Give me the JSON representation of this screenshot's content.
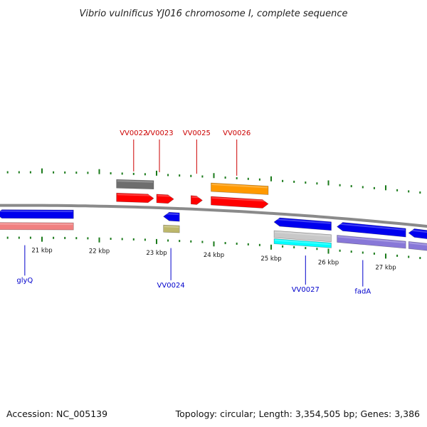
{
  "title": "Vibrio vulnificus YJ016 chromosome I, complete sequence",
  "footer": {
    "accession": "Accession: NC_005139",
    "summary": "Topology: circular; Length: 3,354,505 bp; Genes: 3,386"
  },
  "colors": {
    "backbone": "#8a8a8a",
    "tick": "#1a7a1a",
    "forward_cds": "#ff0000",
    "reverse_cds": "#0000ee",
    "top_label": "#cc0000",
    "bottom_label": "#0000cc",
    "gray_feature": "#6e6e6e",
    "orange_feature": "#ff9900",
    "pink_feature": "#f08080",
    "olive_feature": "#bdb76b",
    "cyan_feature": "#00ffff",
    "lightgray_feature": "#c8c8c8",
    "purple_feature": "#8878d8"
  },
  "scale": {
    "ticks": [
      {
        "text": "21 kbp",
        "kb": 21
      },
      {
        "text": "22 kbp",
        "kb": 22
      },
      {
        "text": "23 kbp",
        "kb": 23
      },
      {
        "text": "24 kbp",
        "kb": 24
      },
      {
        "text": "25 kbp",
        "kb": 25
      },
      {
        "text": "26 kbp",
        "kb": 26
      },
      {
        "text": "27 kbp",
        "kb": 27
      }
    ]
  },
  "labels_top": [
    {
      "text": "VV0022",
      "kb": 22.6
    },
    {
      "text": "VV0023",
      "kb": 23.05
    },
    {
      "text": "VV0025",
      "kb": 23.7
    },
    {
      "text": "VV0026",
      "kb": 24.4
    }
  ],
  "labels_bottom": [
    {
      "text": "glyQ",
      "kb": 20.7
    },
    {
      "text": "VV0024",
      "kb": 23.25
    },
    {
      "text": "VV0027",
      "kb": 25.6
    },
    {
      "text": "fadA",
      "kb": 26.6
    }
  ],
  "features": [
    {
      "name": "gray-feature-vv0022",
      "track": "top-outer",
      "start": 22.3,
      "end": 22.95,
      "strand": "none",
      "color": "gray_feature"
    },
    {
      "name": "orange-feature-vv0026",
      "track": "top-outer",
      "start": 23.95,
      "end": 24.95,
      "strand": "none",
      "color": "orange_feature"
    },
    {
      "name": "cds-vv0022",
      "track": "top-inner",
      "start": 22.3,
      "end": 22.95,
      "strand": "forward",
      "color": "forward_cds"
    },
    {
      "name": "cds-vv0023",
      "track": "top-inner",
      "start": 23.0,
      "end": 23.3,
      "strand": "forward",
      "color": "forward_cds"
    },
    {
      "name": "cds-vv0025",
      "track": "top-inner",
      "start": 23.6,
      "end": 23.8,
      "strand": "forward",
      "color": "forward_cds"
    },
    {
      "name": "cds-vv0026",
      "track": "top-inner",
      "start": 23.95,
      "end": 24.95,
      "strand": "forward",
      "color": "forward_cds"
    },
    {
      "name": "cds-left-fragment",
      "track": "bottom-inner",
      "start": 19.7,
      "end": 20.15,
      "strand": "reverse",
      "color": "reverse_cds"
    },
    {
      "name": "cds-glyq",
      "track": "bottom-inner",
      "start": 20.2,
      "end": 21.55,
      "strand": "reverse",
      "color": "reverse_cds"
    },
    {
      "name": "cds-vv0024",
      "track": "bottom-inner",
      "start": 23.12,
      "end": 23.4,
      "strand": "reverse",
      "color": "reverse_cds"
    },
    {
      "name": "cds-vv0027",
      "track": "bottom-inner",
      "start": 25.05,
      "end": 26.05,
      "strand": "reverse",
      "color": "reverse_cds"
    },
    {
      "name": "cds-fada",
      "track": "bottom-inner",
      "start": 26.15,
      "end": 27.35,
      "strand": "reverse",
      "color": "reverse_cds"
    },
    {
      "name": "cds-right-fragment",
      "track": "bottom-inner",
      "start": 27.4,
      "end": 28.0,
      "strand": "reverse",
      "color": "reverse_cds"
    },
    {
      "name": "pink-feature-left",
      "track": "bottom-outer",
      "start": 19.7,
      "end": 20.15,
      "strand": "none",
      "color": "pink_feature"
    },
    {
      "name": "pink-feature-glyq",
      "track": "bottom-outer",
      "start": 20.2,
      "end": 21.55,
      "strand": "none",
      "color": "pink_feature"
    },
    {
      "name": "olive-feature-vv0024",
      "track": "bottom-outer",
      "start": 23.12,
      "end": 23.4,
      "strand": "none",
      "color": "olive_feature"
    },
    {
      "name": "lightgray-feature-vv0027",
      "track": "bottom-outer",
      "start": 25.05,
      "end": 26.05,
      "strand": "none",
      "color": "lightgray_feature"
    },
    {
      "name": "cyan-feature-vv0027",
      "track": "bottom-outer2",
      "start": 25.05,
      "end": 26.05,
      "strand": "none",
      "color": "cyan_feature"
    },
    {
      "name": "purple-feature-fada",
      "track": "bottom-outer",
      "start": 26.15,
      "end": 27.35,
      "strand": "none",
      "color": "purple_feature"
    },
    {
      "name": "purple-feature-right",
      "track": "bottom-outer",
      "start": 27.4,
      "end": 28.0,
      "strand": "none",
      "color": "purple_feature"
    }
  ]
}
